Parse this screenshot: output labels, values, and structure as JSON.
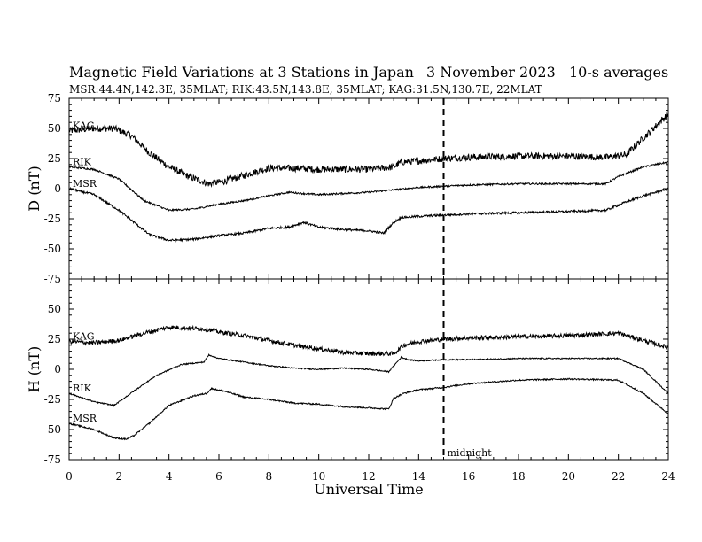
{
  "chart_data": {
    "type": "line",
    "title": "Magnetic Field Variations at 3 Stations in Japan",
    "date_label": "3   November 2023",
    "averaging_label": "10-s averages",
    "subtitle": "MSR:44.4N,142.3E, 35MLAT;  RIK:43.5N,143.8E, 35MLAT;  KAG:31.5N,130.7E, 22MLAT",
    "xlabel": "Universal Time",
    "xlim": [
      0,
      24
    ],
    "xticks": [
      0,
      2,
      4,
      6,
      8,
      10,
      12,
      14,
      16,
      18,
      20,
      22,
      24
    ],
    "annotation": {
      "text": "midnight",
      "x": 15
    },
    "panels": [
      {
        "ylabel": "D (nT)",
        "ylim": [
          -75,
          75
        ],
        "yticks": [
          75,
          50,
          25,
          0,
          -25,
          -50,
          -75
        ],
        "series": [
          {
            "name": "KAG",
            "noise": 2.8,
            "x": [
              0,
              1,
              1.8,
              2.5,
              3.2,
              4,
              4.8,
              5.6,
              6.2,
              7,
              8,
              9,
              10,
              11,
              12,
              13,
              13.3,
              14,
              15,
              16,
              18,
              20,
              21.5,
              22.3,
              23,
              24
            ],
            "y": [
              48,
              50,
              50,
              44,
              30,
              18,
              10,
              4,
              6,
              11,
              17,
              17,
              16,
              16,
              16,
              18,
              22,
              23,
              25,
              26,
              27,
              27,
              26,
              28,
              42,
              62
            ]
          },
          {
            "name": "RIK",
            "noise": 0.7,
            "x": [
              0,
              1,
              2,
              3,
              4,
              5,
              6,
              7,
              8,
              8.8,
              9.3,
              10,
              11,
              12,
              13,
              14,
              15,
              16,
              18,
              20,
              21.5,
              22,
              23,
              24
            ],
            "y": [
              18,
              16,
              8,
              -10,
              -18,
              -17,
              -13,
              -10,
              -6,
              -3,
              -4,
              -5,
              -4,
              -3,
              -1,
              1,
              2,
              3,
              4,
              4,
              4,
              10,
              18,
              22
            ]
          },
          {
            "name": "MSR",
            "noise": 0.9,
            "x": [
              0,
              1,
              2,
              2.6,
              3.2,
              4,
              5,
              6,
              7,
              8,
              8.8,
              9.4,
              10,
              11,
              12,
              12.6,
              13,
              13.3,
              14,
              15,
              16,
              18,
              20,
              21.5,
              22.2,
              23,
              24
            ],
            "y": [
              0,
              -5,
              -18,
              -28,
              -38,
              -43,
              -42,
              -39,
              -37,
              -33,
              -32,
              -28,
              -32,
              -34,
              -35,
              -37,
              -28,
              -24,
              -23,
              -22,
              -21,
              -20,
              -19,
              -18,
              -12,
              -6,
              0
            ]
          }
        ]
      },
      {
        "ylabel": "H (nT)",
        "ylim": [
          -75,
          75
        ],
        "yticks": [
          75,
          50,
          25,
          0,
          -25,
          -50,
          -75
        ],
        "series": [
          {
            "name": "KAG",
            "noise": 1.8,
            "x": [
              0,
              1,
              2,
              3,
              4,
              5,
              5.6,
              6,
              7,
              8,
              9,
              10,
              11,
              12,
              13,
              13.4,
              14,
              15,
              16,
              18,
              20,
              22,
              23,
              24
            ],
            "y": [
              23,
              22,
              24,
              30,
              35,
              34,
              33,
              31,
              28,
              24,
              20,
              17,
              14,
              13,
              13,
              20,
              23,
              25,
              26,
              27,
              28,
              30,
              24,
              18
            ]
          },
          {
            "name": "RIK",
            "noise": 0.5,
            "x": [
              0,
              1,
              1.8,
              2.6,
              3.5,
              4.5,
              5.4,
              5.6,
              6,
              7,
              8,
              9,
              10,
              11,
              12,
              12.8,
              13.3,
              13.6,
              14,
              15,
              16,
              18,
              20,
              22,
              23,
              24
            ],
            "y": [
              -20,
              -27,
              -30,
              -18,
              -5,
              4,
              6,
              12,
              9,
              6,
              3,
              1,
              0,
              1,
              0,
              -2,
              10,
              8,
              7,
              8,
              8,
              9,
              9,
              9,
              0,
              -20
            ]
          },
          {
            "name": "MSR",
            "noise": 0.6,
            "x": [
              0,
              1,
              1.8,
              2.3,
              2.6,
              3.2,
              4,
              5,
              5.5,
              5.7,
              6.2,
              7,
              8,
              9,
              10,
              11,
              12,
              12.8,
              13,
              13.4,
              14,
              15,
              16,
              18,
              20,
              22,
              23,
              24
            ],
            "y": [
              -45,
              -50,
              -57,
              -58,
              -55,
              -45,
              -30,
              -22,
              -20,
              -16,
              -18,
              -23,
              -25,
              -28,
              -29,
              -31,
              -32,
              -33,
              -24,
              -20,
              -17,
              -15,
              -12,
              -9,
              -8,
              -9,
              -20,
              -37
            ]
          }
        ]
      }
    ]
  }
}
